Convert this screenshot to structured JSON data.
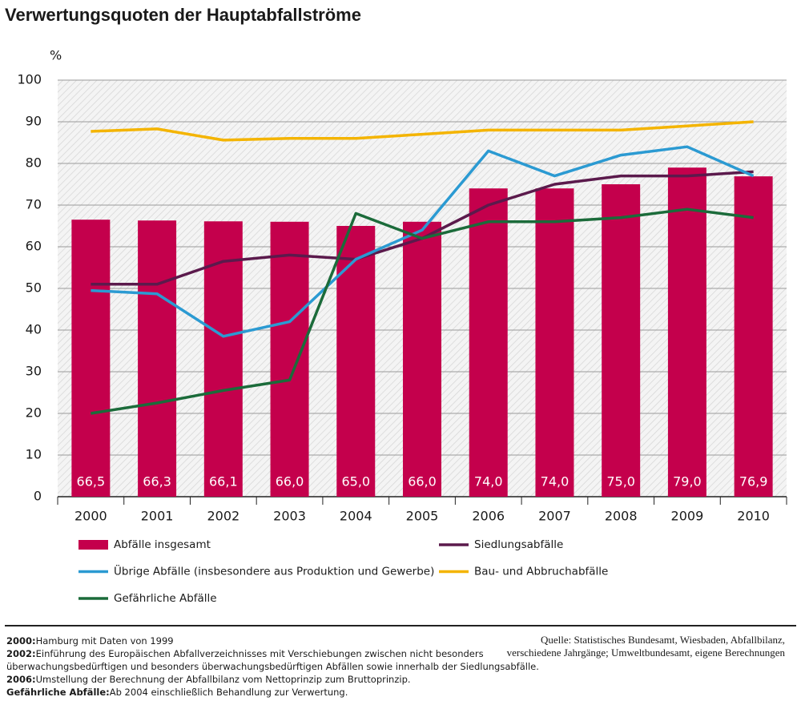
{
  "chart_data": {
    "type": "bar",
    "title": "Verwertungsquoten der Hauptabfallströme",
    "y_label": "%",
    "categories": [
      "2000",
      "2001",
      "2002",
      "2003",
      "2004",
      "2005",
      "2006",
      "2007",
      "2008",
      "2009",
      "2010"
    ],
    "ylim": [
      0,
      100
    ],
    "yticks": [
      0,
      10,
      20,
      30,
      40,
      50,
      60,
      70,
      80,
      90,
      100
    ],
    "grid": true,
    "series": [
      {
        "name": "Abfälle insgesamt",
        "type": "bar",
        "color": "#c4004c",
        "values": [
          66.5,
          66.3,
          66.1,
          66.0,
          65.0,
          66.0,
          74.0,
          74.0,
          75.0,
          79.0,
          76.9
        ],
        "value_labels": [
          "66,5",
          "66,3",
          "66,1",
          "66,0",
          "65,0",
          "66,0",
          "74,0",
          "74,0",
          "75,0",
          "79,0",
          "76,9"
        ]
      },
      {
        "name": "Siedlungsabfälle",
        "type": "line",
        "color": "#5b1a4c",
        "values": [
          51,
          51,
          56.5,
          58,
          57,
          62,
          70,
          75,
          77,
          77,
          78
        ]
      },
      {
        "name": "Übrige Abfälle (insbesondere aus Produktion und Gewerbe)",
        "type": "line",
        "color": "#2b9ad2",
        "values": [
          49.5,
          48.7,
          38.5,
          42,
          57,
          64,
          83,
          77,
          82,
          84,
          77
        ]
      },
      {
        "name": "Bau- und Abbruchabfälle",
        "type": "line",
        "color": "#f4b400",
        "values": [
          87.7,
          88.3,
          85.6,
          86,
          86,
          87,
          88,
          88,
          88,
          89,
          90
        ]
      },
      {
        "name": "Gefährliche Abfälle",
        "type": "line",
        "color": "#1b6b3a",
        "values": [
          20,
          22.5,
          25.5,
          28,
          68,
          62,
          66,
          66,
          67,
          69,
          67
        ]
      }
    ],
    "notes": [
      {
        "term": "2000:",
        "text": "Hamburg mit Daten von 1999"
      },
      {
        "term": "2002:",
        "text": "Einführung des Europäischen Abfallverzeichnisses mit Verschiebungen zwischen nicht besonders"
      },
      {
        "term": "",
        "text": "überwachungsbedürftigen und besonders überwachungsbedürftigen Abfällen sowie innerhalb der Siedlungsabfälle."
      },
      {
        "term": "2006:",
        "text": "Umstellung der Berechnung der Abfallbilanz vom Nettoprinzip zum Bruttoprinzip."
      },
      {
        "term": "Gefährliche Abfälle:",
        "text": "Ab 2004 einschließlich Behandlung zur Verwertung."
      }
    ],
    "source": [
      "Quelle: Statistisches Bundesamt, Wiesbaden, Abfallbilanz,",
      "verschiedene Jahrgänge; Umweltbundesamt, eigene Berechnungen"
    ]
  }
}
